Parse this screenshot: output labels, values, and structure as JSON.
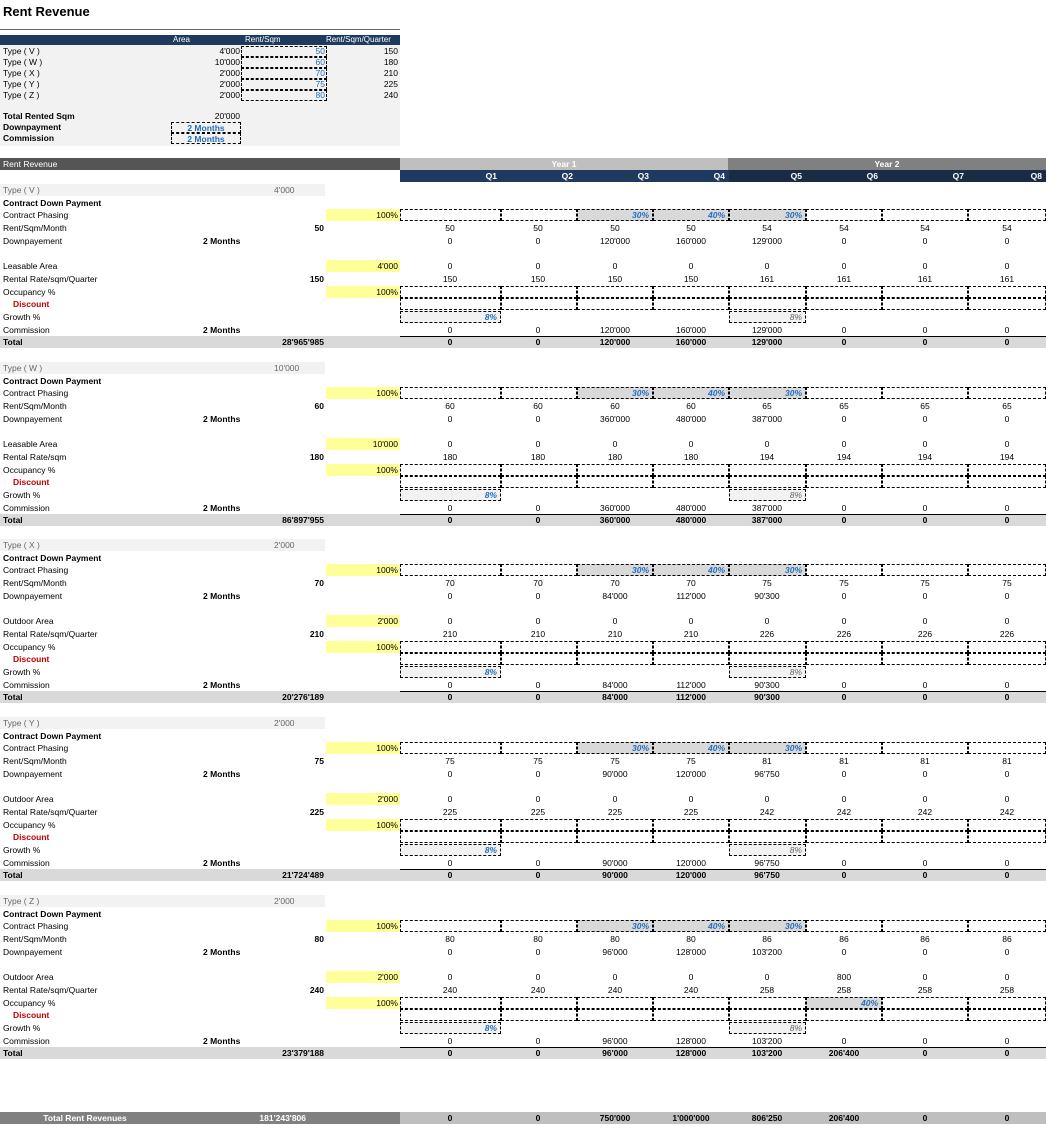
{
  "title": "Rent Revenue",
  "summary": {
    "headers": {
      "area": "Area",
      "rent_sqm": "Rent/Sqm",
      "rent_quarter": "Rent/Sqm/Quarter"
    },
    "rows": [
      {
        "label": "Type ( V )",
        "area": "4'000",
        "rent": "50",
        "quarter": "150"
      },
      {
        "label": "Type ( W )",
        "area": "10'000",
        "rent": "60",
        "quarter": "180"
      },
      {
        "label": "Type ( X )",
        "area": "2'000",
        "rent": "70",
        "quarter": "210"
      },
      {
        "label": "Type ( Y )",
        "area": "2'000",
        "rent": "75",
        "quarter": "225"
      },
      {
        "label": "Type ( Z )",
        "area": "2'000",
        "rent": "80",
        "quarter": "240"
      }
    ],
    "total_label": "Total Rented Sqm",
    "total_value": "20'000",
    "downpayment_label": "Downpayment",
    "downpayment_value": "2 Months",
    "commission_label": "Commission",
    "commission_value": "2 Months"
  },
  "header": {
    "rent_revenue": "Rent Revenue",
    "year1": "Year 1",
    "year2": "Year 2",
    "quarters": [
      "Q1",
      "Q2",
      "Q3",
      "Q4",
      "Q5",
      "Q6",
      "Q7",
      "Q8"
    ]
  },
  "labels": {
    "contract_down_payment": "Contract Down Payment",
    "contract_phasing": "Contract Phasing",
    "rent_sqm_month": "Rent/Sqm/Month",
    "downpayement": "Downpayement",
    "occupancy": "Occupancy %",
    "discount": "Discount",
    "growth": "Growth %",
    "commission": "Commission",
    "total": "Total",
    "months": "2 Months",
    "pct100": "100%",
    "growth_rate": "8%",
    "zero": "0",
    "phase_q3": "30%",
    "phase_q4": "40%",
    "phase_q5": "30%",
    "occ_q6_z": "40%"
  },
  "blocks": [
    {
      "type": "Type ( V )",
      "area": "4'000",
      "rent_month": "50",
      "area_label": "Leasable Area",
      "rate_label": "Rental Rate/sqm/Quarter",
      "rate": "150",
      "total": "28'965'985",
      "rent_q": [
        "50",
        "50",
        "50",
        "50",
        "54",
        "54",
        "54",
        "54"
      ],
      "down_q": [
        "0",
        "0",
        "120'000",
        "160'000",
        "129'000",
        "0",
        "0",
        "0"
      ],
      "area_q": [
        "0",
        "0",
        "0",
        "0",
        "0",
        "0",
        "0",
        "0"
      ],
      "rate_q": [
        "150",
        "150",
        "150",
        "150",
        "161",
        "161",
        "161",
        "161"
      ],
      "comm_q": [
        "0",
        "0",
        "120'000",
        "160'000",
        "129'000",
        "0",
        "0",
        "0"
      ],
      "total_q": [
        "0",
        "0",
        "120'000",
        "160'000",
        "129'000",
        "0",
        "0",
        "0"
      ]
    },
    {
      "type": "Type ( W )",
      "area": "10'000",
      "rent_month": "60",
      "area_label": "Leasable Area",
      "rate_label": "Rental Rate/sqm",
      "rate": "180",
      "total": "86'897'955",
      "rent_q": [
        "60",
        "60",
        "60",
        "60",
        "65",
        "65",
        "65",
        "65"
      ],
      "down_q": [
        "0",
        "0",
        "360'000",
        "480'000",
        "387'000",
        "0",
        "0",
        "0"
      ],
      "area_q": [
        "0",
        "0",
        "0",
        "0",
        "0",
        "0",
        "0",
        "0"
      ],
      "rate_q": [
        "180",
        "180",
        "180",
        "180",
        "194",
        "194",
        "194",
        "194"
      ],
      "comm_q": [
        "0",
        "0",
        "360'000",
        "480'000",
        "387'000",
        "0",
        "0",
        "0"
      ],
      "total_q": [
        "0",
        "0",
        "360'000",
        "480'000",
        "387'000",
        "0",
        "0",
        "0"
      ]
    },
    {
      "type": "Type ( X )",
      "area": "2'000",
      "rent_month": "70",
      "area_label": "Outdoor Area",
      "rate_label": "Rental Rate/sqm/Quarter",
      "rate": "210",
      "total": "20'276'189",
      "rent_q": [
        "70",
        "70",
        "70",
        "70",
        "75",
        "75",
        "75",
        "75"
      ],
      "down_q": [
        "0",
        "0",
        "84'000",
        "112'000",
        "90'300",
        "0",
        "0",
        "0"
      ],
      "area_q": [
        "0",
        "0",
        "0",
        "0",
        "0",
        "0",
        "0",
        "0"
      ],
      "rate_q": [
        "210",
        "210",
        "210",
        "210",
        "226",
        "226",
        "226",
        "226"
      ],
      "comm_q": [
        "0",
        "0",
        "84'000",
        "112'000",
        "90'300",
        "0",
        "0",
        "0"
      ],
      "total_q": [
        "0",
        "0",
        "84'000",
        "112'000",
        "90'300",
        "0",
        "0",
        "0"
      ]
    },
    {
      "type": "Type ( Y )",
      "area": "2'000",
      "rent_month": "75",
      "area_label": "Outdoor Area",
      "rate_label": "Rental Rate/sqm/Quarter",
      "rate": "225",
      "total": "21'724'489",
      "rent_q": [
        "75",
        "75",
        "75",
        "75",
        "81",
        "81",
        "81",
        "81"
      ],
      "down_q": [
        "0",
        "0",
        "90'000",
        "120'000",
        "96'750",
        "0",
        "0",
        "0"
      ],
      "area_q": [
        "0",
        "0",
        "0",
        "0",
        "0",
        "0",
        "0",
        "0"
      ],
      "rate_q": [
        "225",
        "225",
        "225",
        "225",
        "242",
        "242",
        "242",
        "242"
      ],
      "comm_q": [
        "0",
        "0",
        "90'000",
        "120'000",
        "96'750",
        "0",
        "0",
        "0"
      ],
      "total_q": [
        "0",
        "0",
        "90'000",
        "120'000",
        "96'750",
        "0",
        "0",
        "0"
      ]
    },
    {
      "type": "Type ( Z )",
      "area": "2'000",
      "rent_month": "80",
      "area_label": "Outdoor Area",
      "rate_label": "Rental Rate/sqm/Quarter",
      "rate": "240",
      "total": "23'379'188",
      "rent_q": [
        "80",
        "80",
        "80",
        "80",
        "86",
        "86",
        "86",
        "86"
      ],
      "down_q": [
        "0",
        "0",
        "96'000",
        "128'000",
        "103'200",
        "0",
        "0",
        "0"
      ],
      "area_q": [
        "0",
        "0",
        "0",
        "0",
        "0",
        "800",
        "0",
        "0"
      ],
      "rate_q": [
        "240",
        "240",
        "240",
        "240",
        "258",
        "258",
        "258",
        "258"
      ],
      "comm_q": [
        "0",
        "0",
        "96'000",
        "128'000",
        "103'200",
        "0",
        "0",
        "0"
      ],
      "total_q": [
        "0",
        "0",
        "96'000",
        "128'000",
        "103'200",
        "206'400",
        "0",
        "0"
      ]
    }
  ],
  "grand_total": {
    "label": "Total Rent Revenues",
    "value": "181'243'806",
    "q": [
      "0",
      "0",
      "750'000",
      "1'000'000",
      "806'250",
      "206'400",
      "0",
      "0"
    ]
  }
}
